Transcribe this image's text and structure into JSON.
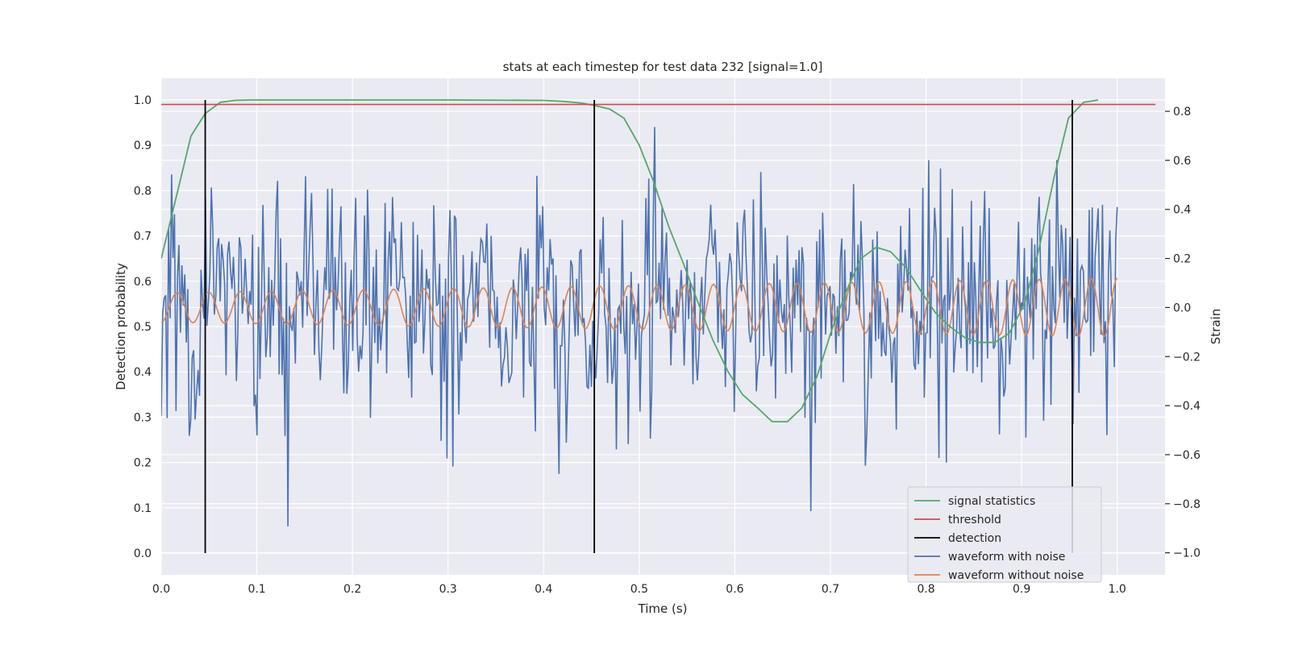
{
  "chart_data": {
    "type": "line",
    "title": "stats at each timestep for test data 232 [signal=1.0]",
    "xlabel": "Time (s)",
    "ylabel": "Detection probability",
    "y2label": "Strain",
    "xlim": [
      0.0,
      1.05
    ],
    "ylim": [
      -0.048,
      1.048
    ],
    "y2lim": [
      -1.09,
      0.935
    ],
    "xticks": [
      "0.0",
      "0.1",
      "0.2",
      "0.3",
      "0.4",
      "0.5",
      "0.6",
      "0.7",
      "0.8",
      "0.9",
      "1.0"
    ],
    "yticks": [
      "0.0",
      "0.1",
      "0.2",
      "0.3",
      "0.4",
      "0.5",
      "0.6",
      "0.7",
      "0.8",
      "0.9",
      "1.0"
    ],
    "y2ticks": [
      "−1.0",
      "−0.8",
      "−0.6",
      "−0.4",
      "−0.2",
      "0.0",
      "0.2",
      "0.4",
      "0.6",
      "0.8"
    ],
    "grid": true,
    "legend_position": "lower-right",
    "colors": {
      "plot_bg": "#eaeaf2",
      "signal": "#55a868",
      "threshold": "#c44e52",
      "detection": "#000000",
      "noisy": "#4c72b0",
      "clean": "#dd8452"
    },
    "legend": [
      {
        "label": "signal statistics",
        "color": "#55a868"
      },
      {
        "label": "threshold",
        "color": "#c44e52"
      },
      {
        "label": "detection",
        "color": "#000000"
      },
      {
        "label": "waveform with noise",
        "color": "#4c72b0"
      },
      {
        "label": "waveform without noise",
        "color": "#dd8452"
      }
    ],
    "threshold": 0.99,
    "threshold_x": [
      0.0,
      1.04
    ],
    "detections": [
      0.046,
      0.453,
      0.953
    ],
    "detection_y": [
      0.0,
      1.0
    ],
    "signal_statistics": {
      "x": [
        0.0,
        0.015,
        0.031,
        0.046,
        0.062,
        0.077,
        0.093,
        0.108,
        0.124,
        0.139,
        0.155,
        0.2,
        0.3,
        0.4,
        0.42,
        0.44,
        0.453,
        0.469,
        0.484,
        0.5,
        0.515,
        0.531,
        0.546,
        0.562,
        0.577,
        0.593,
        0.608,
        0.624,
        0.639,
        0.655,
        0.67,
        0.686,
        0.701,
        0.717,
        0.732,
        0.748,
        0.763,
        0.779,
        0.794,
        0.81,
        0.825,
        0.841,
        0.856,
        0.872,
        0.887,
        0.903,
        0.918,
        0.934,
        0.949,
        0.965,
        0.98
      ],
      "y": [
        0.65,
        0.78,
        0.92,
        0.97,
        0.995,
        0.999,
        1.0,
        1.0,
        1.0,
        1.0,
        1.0,
        1.0,
        1.0,
        0.999,
        0.997,
        0.993,
        0.988,
        0.98,
        0.96,
        0.9,
        0.82,
        0.72,
        0.64,
        0.55,
        0.47,
        0.4,
        0.35,
        0.32,
        0.29,
        0.29,
        0.32,
        0.39,
        0.49,
        0.58,
        0.65,
        0.675,
        0.665,
        0.63,
        0.58,
        0.53,
        0.5,
        0.475,
        0.465,
        0.465,
        0.485,
        0.55,
        0.67,
        0.83,
        0.96,
        0.995,
        1.0
      ]
    },
    "series": [
      {
        "name": "waveform with noise",
        "x_start": 0.0,
        "x_end": 1.0,
        "count": 650,
        "std": 0.24,
        "generated_seed": 232
      },
      {
        "name": "waveform without noise",
        "x_start": 0.0,
        "x_end": 1.0,
        "count": 650,
        "freq_start": 30,
        "freq_end": 37,
        "amp_start": 0.06,
        "amp_end": 0.12
      }
    ]
  }
}
